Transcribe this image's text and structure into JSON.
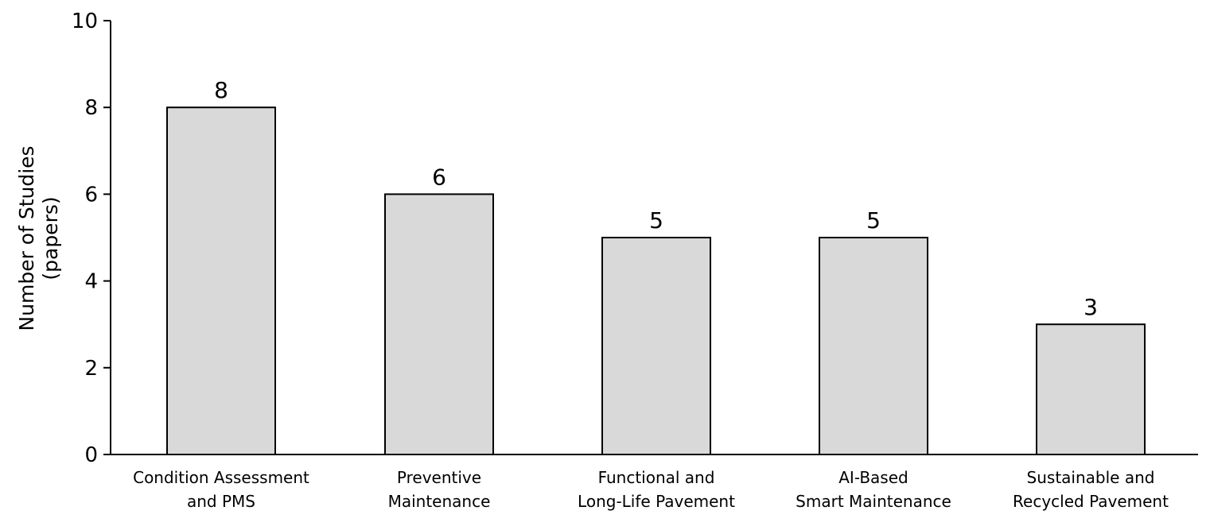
{
  "chart_data": {
    "type": "bar",
    "title": "",
    "xlabel": "",
    "ylabel": [
      "Number of Studies",
      "(papers)"
    ],
    "categories": [
      [
        "Condition Assessment",
        "and PMS"
      ],
      [
        "Preventive",
        "Maintenance"
      ],
      [
        "Functional and",
        "Long-Life Pavement"
      ],
      [
        "AI-Based",
        "Smart Maintenance"
      ],
      [
        "Sustainable and",
        "Recycled Pavement"
      ]
    ],
    "values": [
      8,
      6,
      5,
      5,
      3
    ],
    "data_labels": [
      "8",
      "6",
      "5",
      "5",
      "3"
    ],
    "ylim": [
      0,
      10
    ],
    "yticks": [
      0,
      2,
      4,
      6,
      8,
      10
    ],
    "grid": false,
    "legend": "none",
    "colors": {
      "bar_fill": "#d9d9d9",
      "bar_stroke": "#000000",
      "axis": "#000000"
    }
  }
}
